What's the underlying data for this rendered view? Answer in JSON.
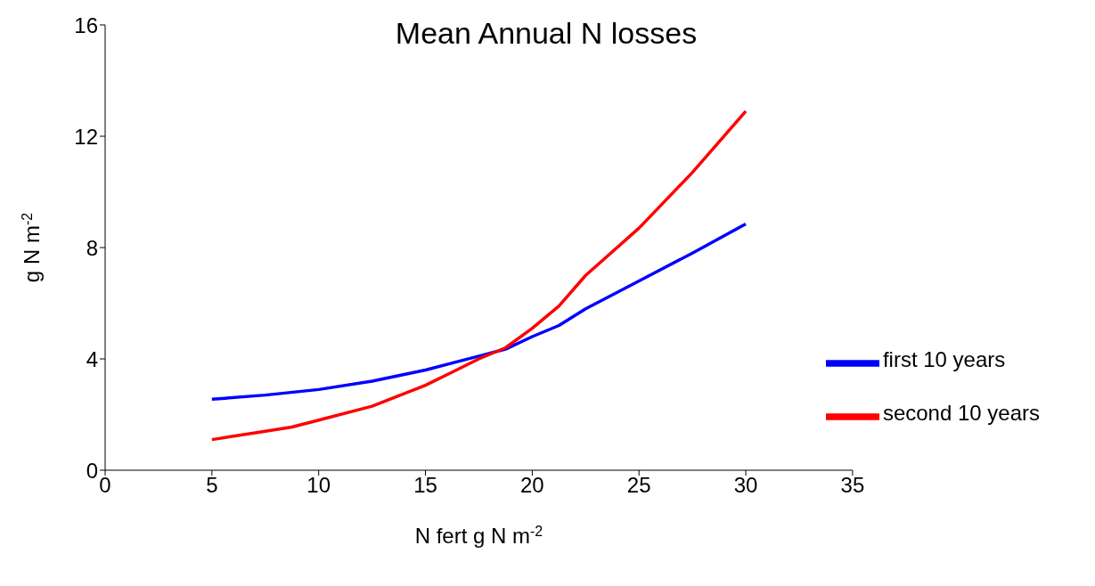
{
  "chart_data": {
    "type": "line",
    "title": "Mean Annual N losses",
    "xlabel": "N fert g N m$^{-2}$",
    "ylabel": "g N m$^{-2}$",
    "xlim": [
      0,
      35
    ],
    "xticks": [
      0,
      5,
      10,
      15,
      20,
      25,
      30,
      35
    ],
    "ylim": [
      0,
      16
    ],
    "yticks": [
      0,
      4,
      8,
      12,
      16
    ],
    "grid": false,
    "legend": "bottom right",
    "marker": "none",
    "line_style": "solid",
    "series": [
      {
        "name": "first 10 years",
        "color": "#0000ff",
        "x": [
          5,
          7.5,
          10,
          12.5,
          15,
          17.5,
          18.75,
          20,
          21.25,
          22.5,
          25,
          27.5,
          30
        ],
        "values": [
          2.55,
          2.7,
          2.9,
          3.2,
          3.6,
          4.1,
          4.35,
          4.8,
          5.2,
          5.8,
          6.8,
          7.8,
          8.85
        ]
      },
      {
        "name": "second 10 years",
        "color": "#ff0000",
        "x": [
          5,
          7.5,
          8.75,
          10,
          12.5,
          15,
          17.5,
          18.75,
          20,
          21.25,
          22.5,
          25,
          26.25,
          27.5,
          30
        ],
        "values": [
          1.1,
          1.4,
          1.55,
          1.8,
          2.3,
          3.05,
          4.0,
          4.4,
          5.1,
          5.9,
          7.0,
          8.7,
          9.7,
          10.7,
          12.9
        ]
      }
    ]
  }
}
